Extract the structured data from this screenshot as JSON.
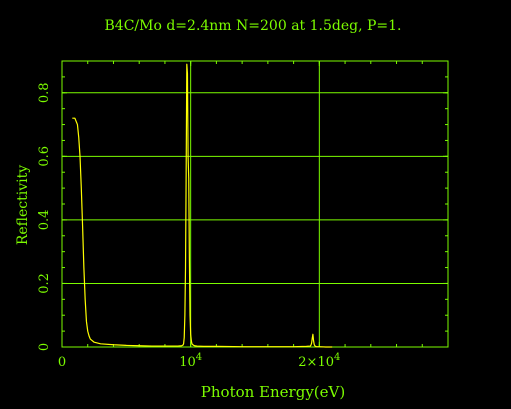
{
  "chart_data": {
    "type": "line",
    "title": "B4C/Mo d=2.4nm N=200 at 1.5deg, P=1.",
    "xlabel": "Photon Energy(eV)",
    "ylabel": "Reflectivity",
    "xlim": [
      0,
      30000
    ],
    "ylim": [
      0,
      0.9
    ],
    "x_ticks": [
      {
        "value": 0,
        "label": "0",
        "sup": ""
      },
      {
        "value": 10000,
        "label": "10",
        "sup": "4"
      },
      {
        "value": 20000,
        "label": "2×10",
        "sup": "4"
      }
    ],
    "y_ticks": [
      {
        "value": 0,
        "label": "0"
      },
      {
        "value": 0.2,
        "label": "0.2"
      },
      {
        "value": 0.4,
        "label": "0.4"
      },
      {
        "value": 0.6,
        "label": "0.6"
      },
      {
        "value": 0.8,
        "label": "0.8"
      }
    ],
    "grid": true,
    "colors": {
      "background": "#000000",
      "axes": "#7CFC00",
      "series": "#FFFF00"
    },
    "series": [
      {
        "name": "",
        "x": [
          800,
          1000,
          1100,
          1200,
          1300,
          1400,
          1500,
          1600,
          1700,
          1800,
          1900,
          2000,
          2100,
          2200,
          2500,
          3000,
          4000,
          5000,
          6000,
          7000,
          8000,
          9000,
          9300,
          9400,
          9450,
          9500,
          9550,
          9600,
          9650,
          9700,
          9750,
          9800,
          9850,
          9900,
          9950,
          10000,
          10050,
          10100,
          10200,
          10300,
          10500,
          11000,
          12000,
          14000,
          16000,
          18000,
          19000,
          19300,
          19350,
          19400,
          19450,
          19500,
          19550,
          19600,
          19650,
          19700,
          19800,
          20000,
          20500,
          21000
        ],
        "y": [
          0.72,
          0.72,
          0.71,
          0.7,
          0.66,
          0.6,
          0.5,
          0.38,
          0.25,
          0.15,
          0.08,
          0.05,
          0.035,
          0.025,
          0.015,
          0.01,
          0.007,
          0.005,
          0.004,
          0.003,
          0.003,
          0.003,
          0.004,
          0.006,
          0.01,
          0.03,
          0.1,
          0.25,
          0.55,
          0.89,
          0.86,
          0.6,
          0.53,
          0.28,
          0.1,
          0.04,
          0.02,
          0.01,
          0.006,
          0.004,
          0.003,
          0.002,
          0.002,
          0.001,
          0.001,
          0.001,
          0.002,
          0.003,
          0.006,
          0.012,
          0.028,
          0.04,
          0.02,
          0.008,
          0.004,
          0.002,
          0.001,
          0.001,
          0.0,
          0.0
        ]
      }
    ]
  }
}
